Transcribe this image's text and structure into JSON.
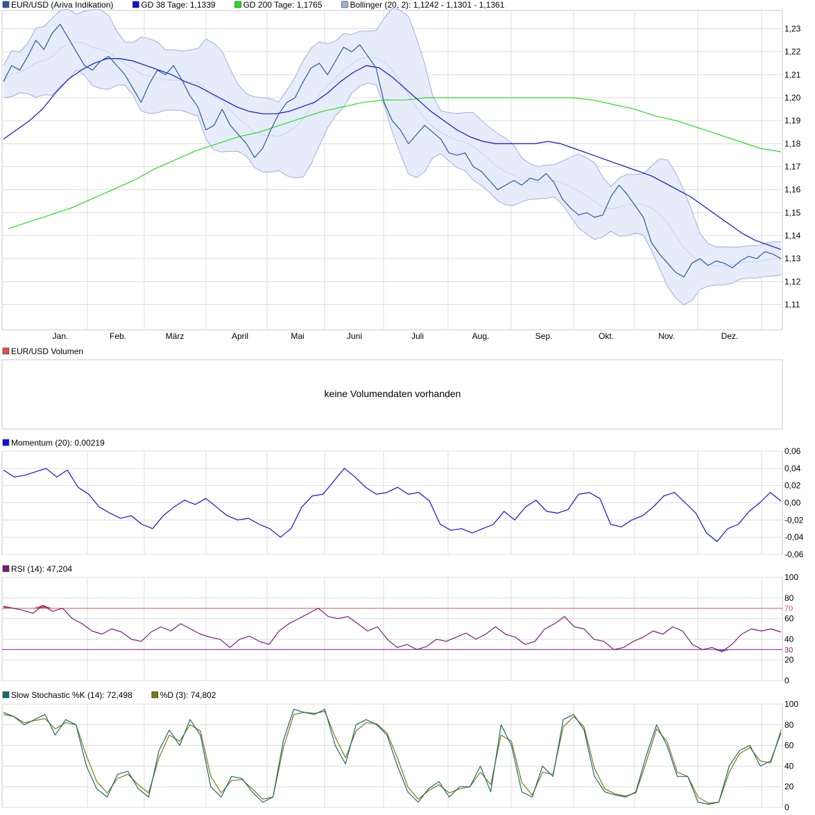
{
  "colors": {
    "price": "#2a5a9c",
    "gd38": "#1010dd",
    "gd200": "#22dd22",
    "band_fill": "#e6ecfa",
    "band_line": "#9db0d6",
    "band_mid": "#c8d4ee",
    "volume_swatch": "#e05050",
    "momentum": "#1010dd",
    "rsi": "#7a1a7a",
    "rsi_high": "#e05050",
    "rsi_low": "#7a1a7a",
    "k_line": "#1a6a6a",
    "d_line": "#7a7a10",
    "grid": "#dcdcdc"
  },
  "months": [
    "Jan.",
    "Feb.",
    "März",
    "April",
    "Mai",
    "Juni",
    "Juli",
    "Aug.",
    "Sep.",
    "Okt.",
    "Nov.",
    "Dez."
  ],
  "chart_data": [
    {
      "type": "line",
      "legend": [
        {
          "label": "EUR/USD (Ariva Indikation)",
          "color": "#2a5a9c"
        },
        {
          "label": "GD 38 Tage: 1,1339",
          "color": "#1010dd"
        },
        {
          "label": "GD 200 Tage: 1,1765",
          "color": "#22dd22"
        },
        {
          "label": "Bollinger (20, 2): 1,1242 - 1,1301 - 1,1361",
          "color": "#9db0d6"
        }
      ],
      "y_ticks": [
        "1,23",
        "1,22",
        "1,21",
        "1,20",
        "1,19",
        "1,18",
        "1,17",
        "1,16",
        "1,15",
        "1,14",
        "1,13",
        "1,12",
        "1,11"
      ],
      "ylim": [
        1.099,
        1.238
      ],
      "series": [
        {
          "name": "EUR/USD",
          "values": [
            1.207,
            1.214,
            1.212,
            1.218,
            1.225,
            1.221,
            1.228,
            1.232,
            1.226,
            1.22,
            1.214,
            1.212,
            1.216,
            1.218,
            1.214,
            1.21,
            1.204,
            1.198,
            1.206,
            1.212,
            1.21,
            1.214,
            1.208,
            1.201,
            1.196,
            1.186,
            1.188,
            1.195,
            1.188,
            1.184,
            1.18,
            1.174,
            1.178,
            1.186,
            1.193,
            1.198,
            1.2,
            1.207,
            1.213,
            1.215,
            1.21,
            1.216,
            1.222,
            1.22,
            1.223,
            1.218,
            1.213,
            1.198,
            1.19,
            1.186,
            1.18,
            1.184,
            1.188,
            1.185,
            1.182,
            1.176,
            1.175,
            1.176,
            1.17,
            1.168,
            1.164,
            1.16,
            1.162,
            1.164,
            1.162,
            1.165,
            1.164,
            1.167,
            1.163,
            1.156,
            1.152,
            1.149,
            1.15,
            1.148,
            1.149,
            1.157,
            1.162,
            1.158,
            1.153,
            1.148,
            1.137,
            1.132,
            1.128,
            1.124,
            1.122,
            1.128,
            1.13,
            1.127,
            1.129,
            1.128,
            1.126,
            1.129,
            1.131,
            1.13,
            1.133,
            1.132,
            1.13
          ]
        },
        {
          "name": "GD 38",
          "values": [
            1.182,
            1.186,
            1.19,
            1.195,
            1.202,
            1.208,
            1.212,
            1.215,
            1.217,
            1.217,
            1.216,
            1.214,
            1.212,
            1.21,
            1.207,
            1.205,
            1.202,
            1.199,
            1.196,
            1.194,
            1.193,
            1.193,
            1.194,
            1.196,
            1.198,
            1.202,
            1.207,
            1.211,
            1.214,
            1.213,
            1.209,
            1.204,
            1.199,
            1.194,
            1.19,
            1.186,
            1.183,
            1.181,
            1.18,
            1.18,
            1.18,
            1.18,
            1.181,
            1.18,
            1.178,
            1.176,
            1.174,
            1.172,
            1.17,
            1.168,
            1.166,
            1.163,
            1.16,
            1.157,
            1.153,
            1.149,
            1.145,
            1.141,
            1.138,
            1.136,
            1.134
          ]
        },
        {
          "name": "GD 200",
          "values": [
            1.143,
            1.146,
            1.149,
            1.152,
            1.156,
            1.16,
            1.164,
            1.169,
            1.173,
            1.177,
            1.18,
            1.183,
            1.185,
            1.188,
            1.191,
            1.194,
            1.196,
            1.198,
            1.199,
            1.199,
            1.2,
            1.2,
            1.2,
            1.2,
            1.2,
            1.2,
            1.2,
            1.2,
            1.199,
            1.197,
            1.195,
            1.192,
            1.19,
            1.187,
            1.184,
            1.181,
            1.178,
            1.1765
          ]
        }
      ]
    },
    {
      "type": "line",
      "legend": [
        {
          "label": "EUR/USD Volumen",
          "color": "#e05050"
        }
      ],
      "message": "keine Volumendaten vorhanden"
    },
    {
      "type": "line",
      "legend": [
        {
          "label": "Momentum (20): 0,00219",
          "color": "#1010dd"
        }
      ],
      "y_ticks": [
        "0,06",
        "0,04",
        "0,02",
        "0,00",
        "-0,02",
        "-0,04",
        "-0,06"
      ],
      "ylim": [
        -0.06,
        0.06
      ],
      "series": [
        {
          "name": "Momentum",
          "values": [
            0.038,
            0.03,
            0.032,
            0.036,
            0.04,
            0.03,
            0.038,
            0.018,
            0.01,
            -0.005,
            -0.012,
            -0.018,
            -0.015,
            -0.025,
            -0.03,
            -0.015,
            -0.005,
            0.003,
            -0.002,
            0.005,
            -0.005,
            -0.015,
            -0.02,
            -0.018,
            -0.025,
            -0.03,
            -0.04,
            -0.03,
            -0.005,
            0.008,
            0.01,
            0.025,
            0.04,
            0.03,
            0.018,
            0.01,
            0.012,
            0.018,
            0.01,
            0.012,
            0.002,
            -0.025,
            -0.032,
            -0.03,
            -0.035,
            -0.03,
            -0.025,
            -0.01,
            -0.02,
            -0.005,
            0.003,
            -0.01,
            -0.012,
            -0.008,
            0.01,
            0.012,
            0.005,
            -0.025,
            -0.028,
            -0.02,
            -0.015,
            -0.005,
            0.008,
            0.012,
            0.0,
            -0.012,
            -0.035,
            -0.045,
            -0.03,
            -0.025,
            -0.01,
            0.0,
            0.012,
            0.002
          ]
        }
      ]
    },
    {
      "type": "line",
      "legend": [
        {
          "label": "RSI (14): 47,204",
          "color": "#7a1a7a"
        }
      ],
      "y_ticks": [
        "100",
        "80",
        "60",
        "40",
        "20",
        "0"
      ],
      "ylim": [
        0,
        100
      ],
      "thresholds": [
        {
          "value": 70,
          "label": "70",
          "color": "#e05050"
        },
        {
          "value": 30,
          "label": "30",
          "color": "#7a1a7a"
        }
      ],
      "series": [
        {
          "name": "RSI",
          "values": [
            72,
            70,
            68,
            65,
            73,
            67,
            70,
            60,
            55,
            48,
            45,
            50,
            47,
            40,
            38,
            47,
            52,
            48,
            55,
            50,
            45,
            42,
            40,
            32,
            40,
            43,
            38,
            35,
            48,
            55,
            60,
            65,
            70,
            62,
            60,
            62,
            55,
            48,
            52,
            40,
            32,
            35,
            30,
            33,
            40,
            38,
            42,
            46,
            40,
            45,
            52,
            45,
            42,
            35,
            38,
            50,
            55,
            62,
            52,
            50,
            40,
            38,
            30,
            32,
            38,
            42,
            48,
            45,
            52,
            48,
            35,
            30,
            32,
            28,
            35,
            45,
            50,
            48,
            50,
            47
          ]
        }
      ]
    },
    {
      "type": "line",
      "legend": [
        {
          "label": "Slow Stochastic %K (14): 72,498",
          "color": "#1a6a6a"
        },
        {
          "label": "%D (3): 74,802",
          "color": "#7a7a10"
        }
      ],
      "y_ticks": [
        "100",
        "80",
        "60",
        "40",
        "20",
        "0"
      ],
      "ylim": [
        0,
        100
      ],
      "series": [
        {
          "name": "%K",
          "values": [
            92,
            88,
            80,
            85,
            90,
            70,
            85,
            80,
            40,
            18,
            10,
            32,
            35,
            18,
            10,
            55,
            75,
            60,
            85,
            70,
            20,
            10,
            30,
            28,
            15,
            5,
            10,
            65,
            95,
            92,
            90,
            95,
            60,
            42,
            80,
            85,
            80,
            70,
            40,
            15,
            5,
            18,
            25,
            10,
            20,
            20,
            40,
            15,
            80,
            60,
            15,
            10,
            40,
            30,
            85,
            90,
            75,
            30,
            15,
            12,
            10,
            15,
            50,
            80,
            60,
            30,
            30,
            5,
            3,
            5,
            40,
            55,
            60,
            40,
            45,
            72
          ]
        },
        {
          "name": "%D",
          "values": [
            90,
            88,
            82,
            84,
            86,
            76,
            82,
            80,
            50,
            25,
            14,
            28,
            32,
            22,
            14,
            48,
            70,
            64,
            80,
            74,
            30,
            14,
            26,
            27,
            18,
            8,
            10,
            58,
            90,
            92,
            91,
            93,
            68,
            48,
            74,
            82,
            81,
            72,
            48,
            20,
            8,
            16,
            22,
            14,
            18,
            20,
            34,
            22,
            70,
            64,
            24,
            12,
            34,
            32,
            78,
            88,
            78,
            38,
            18,
            13,
            11,
            14,
            44,
            76,
            64,
            34,
            30,
            10,
            4,
            5,
            34,
            52,
            58,
            45,
            43,
            75
          ]
        }
      ]
    }
  ]
}
